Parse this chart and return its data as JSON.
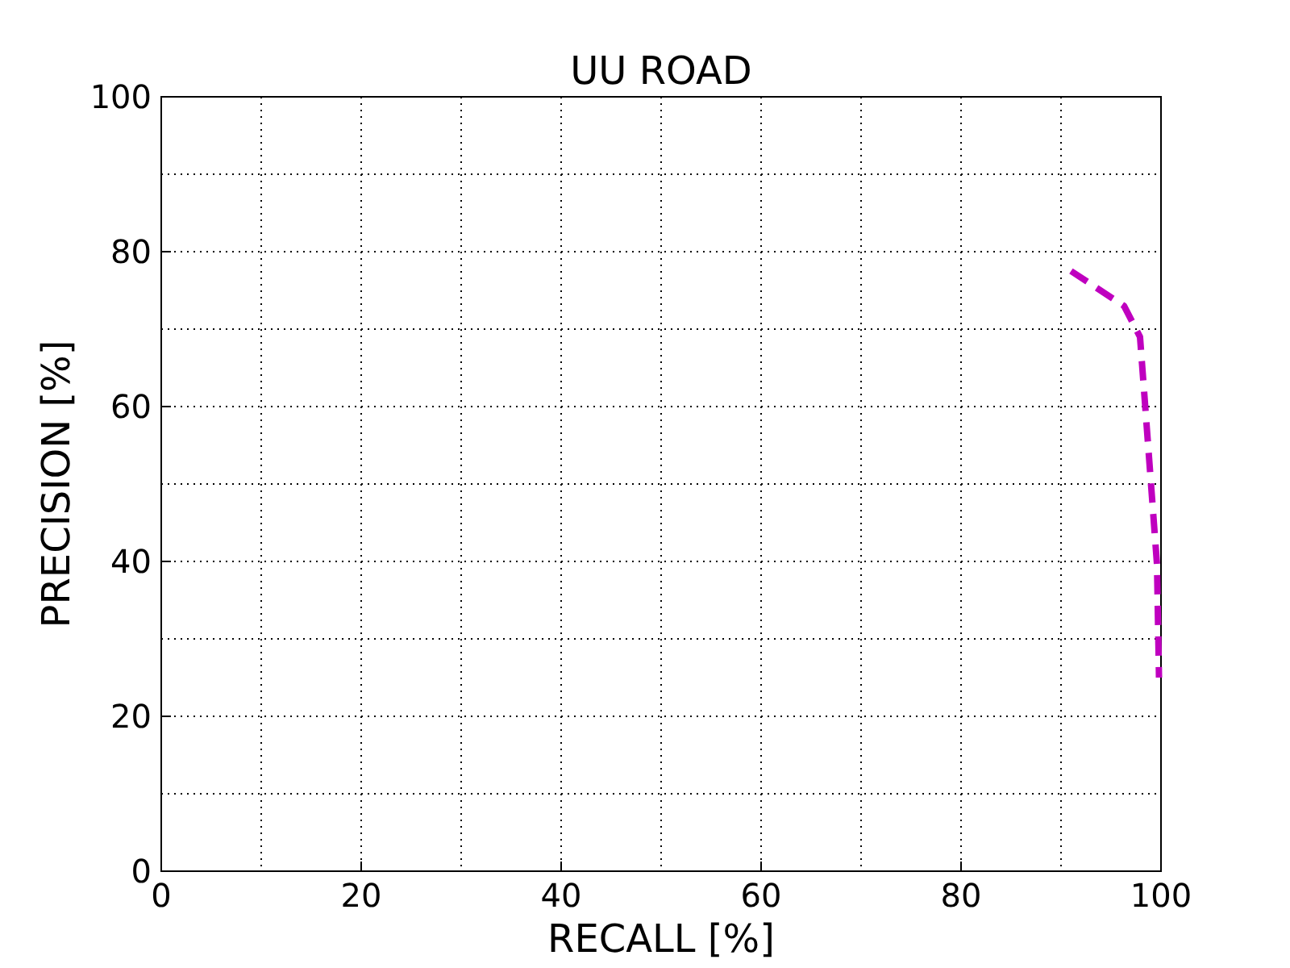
{
  "chart_data": {
    "type": "line",
    "title": "UU ROAD",
    "xlabel": "RECALL [%]",
    "ylabel": "PRECISION [%]",
    "x": [
      91,
      96.3,
      97.9,
      98.4,
      99.0,
      99.6,
      99.8
    ],
    "series": [
      {
        "color": "#bf00bf",
        "values": [
          77.5,
          73,
          69,
          60.4,
          50,
          39.6,
          25
        ]
      }
    ],
    "xlim": [
      0,
      100
    ],
    "ylim": [
      0,
      100
    ],
    "xticks": [
      0,
      20,
      40,
      60,
      80,
      100
    ],
    "yticks": [
      0,
      20,
      40,
      60,
      80,
      100
    ],
    "grid": true,
    "line_style": "dashed"
  }
}
